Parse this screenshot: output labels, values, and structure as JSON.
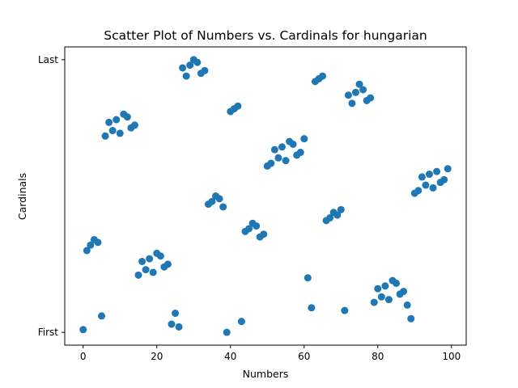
{
  "chart_data": {
    "type": "scatter",
    "title": "Scatter Plot of Numbers vs. Cardinals for hungarian",
    "xlabel": "Numbers",
    "ylabel": "Cardinals",
    "xlim": [
      -5,
      104
    ],
    "ylim": [
      -0.047,
      1.047
    ],
    "x_ticks": [
      0,
      20,
      40,
      60,
      80,
      100
    ],
    "y_ticks": [
      {
        "value": 0,
        "label": "First"
      },
      {
        "value": 1,
        "label": "Last"
      }
    ],
    "grid": false,
    "marker_color": "#1f77b4",
    "points": [
      {
        "x": 0,
        "y": 0.01
      },
      {
        "x": 1,
        "y": 0.3
      },
      {
        "x": 2,
        "y": 0.32
      },
      {
        "x": 3,
        "y": 0.34
      },
      {
        "x": 4,
        "y": 0.33
      },
      {
        "x": 5,
        "y": 0.06
      },
      {
        "x": 6,
        "y": 0.72
      },
      {
        "x": 7,
        "y": 0.77
      },
      {
        "x": 8,
        "y": 0.74
      },
      {
        "x": 9,
        "y": 0.78
      },
      {
        "x": 10,
        "y": 0.73
      },
      {
        "x": 11,
        "y": 0.8
      },
      {
        "x": 12,
        "y": 0.79
      },
      {
        "x": 13,
        "y": 0.75
      },
      {
        "x": 14,
        "y": 0.76
      },
      {
        "x": 15,
        "y": 0.21
      },
      {
        "x": 16,
        "y": 0.26
      },
      {
        "x": 17,
        "y": 0.23
      },
      {
        "x": 18,
        "y": 0.27
      },
      {
        "x": 19,
        "y": 0.22
      },
      {
        "x": 20,
        "y": 0.29
      },
      {
        "x": 21,
        "y": 0.28
      },
      {
        "x": 22,
        "y": 0.24
      },
      {
        "x": 23,
        "y": 0.25
      },
      {
        "x": 24,
        "y": 0.03
      },
      {
        "x": 25,
        "y": 0.07
      },
      {
        "x": 26,
        "y": 0.02
      },
      {
        "x": 27,
        "y": 0.97
      },
      {
        "x": 28,
        "y": 0.94
      },
      {
        "x": 29,
        "y": 0.98
      },
      {
        "x": 30,
        "y": 1.0
      },
      {
        "x": 31,
        "y": 0.99
      },
      {
        "x": 32,
        "y": 0.95
      },
      {
        "x": 33,
        "y": 0.96
      },
      {
        "x": 34,
        "y": 0.47
      },
      {
        "x": 35,
        "y": 0.48
      },
      {
        "x": 36,
        "y": 0.5
      },
      {
        "x": 37,
        "y": 0.49
      },
      {
        "x": 38,
        "y": 0.46
      },
      {
        "x": 39,
        "y": 0.0
      },
      {
        "x": 40,
        "y": 0.81
      },
      {
        "x": 41,
        "y": 0.82
      },
      {
        "x": 42,
        "y": 0.83
      },
      {
        "x": 43,
        "y": 0.04
      },
      {
        "x": 44,
        "y": 0.37
      },
      {
        "x": 45,
        "y": 0.38
      },
      {
        "x": 46,
        "y": 0.4
      },
      {
        "x": 47,
        "y": 0.39
      },
      {
        "x": 48,
        "y": 0.35
      },
      {
        "x": 49,
        "y": 0.36
      },
      {
        "x": 50,
        "y": 0.61
      },
      {
        "x": 51,
        "y": 0.62
      },
      {
        "x": 52,
        "y": 0.67
      },
      {
        "x": 53,
        "y": 0.64
      },
      {
        "x": 54,
        "y": 0.68
      },
      {
        "x": 55,
        "y": 0.63
      },
      {
        "x": 56,
        "y": 0.7
      },
      {
        "x": 57,
        "y": 0.69
      },
      {
        "x": 58,
        "y": 0.65
      },
      {
        "x": 59,
        "y": 0.66
      },
      {
        "x": 60,
        "y": 0.71
      },
      {
        "x": 61,
        "y": 0.2
      },
      {
        "x": 62,
        "y": 0.09
      },
      {
        "x": 63,
        "y": 0.92
      },
      {
        "x": 64,
        "y": 0.93
      },
      {
        "x": 65,
        "y": 0.94
      },
      {
        "x": 66,
        "y": 0.41
      },
      {
        "x": 67,
        "y": 0.42
      },
      {
        "x": 68,
        "y": 0.44
      },
      {
        "x": 69,
        "y": 0.43
      },
      {
        "x": 70,
        "y": 0.45
      },
      {
        "x": 71,
        "y": 0.08
      },
      {
        "x": 72,
        "y": 0.87
      },
      {
        "x": 73,
        "y": 0.84
      },
      {
        "x": 74,
        "y": 0.88
      },
      {
        "x": 75,
        "y": 0.91
      },
      {
        "x": 76,
        "y": 0.89
      },
      {
        "x": 77,
        "y": 0.85
      },
      {
        "x": 78,
        "y": 0.86
      },
      {
        "x": 79,
        "y": 0.11
      },
      {
        "x": 80,
        "y": 0.16
      },
      {
        "x": 81,
        "y": 0.13
      },
      {
        "x": 82,
        "y": 0.17
      },
      {
        "x": 83,
        "y": 0.12
      },
      {
        "x": 84,
        "y": 0.19
      },
      {
        "x": 85,
        "y": 0.18
      },
      {
        "x": 86,
        "y": 0.14
      },
      {
        "x": 87,
        "y": 0.15
      },
      {
        "x": 88,
        "y": 0.1
      },
      {
        "x": 89,
        "y": 0.05
      },
      {
        "x": 90,
        "y": 0.51
      },
      {
        "x": 91,
        "y": 0.52
      },
      {
        "x": 92,
        "y": 0.57
      },
      {
        "x": 93,
        "y": 0.54
      },
      {
        "x": 94,
        "y": 0.58
      },
      {
        "x": 95,
        "y": 0.53
      },
      {
        "x": 96,
        "y": 0.59
      },
      {
        "x": 97,
        "y": 0.55
      },
      {
        "x": 98,
        "y": 0.56
      },
      {
        "x": 99,
        "y": 0.6
      }
    ]
  }
}
